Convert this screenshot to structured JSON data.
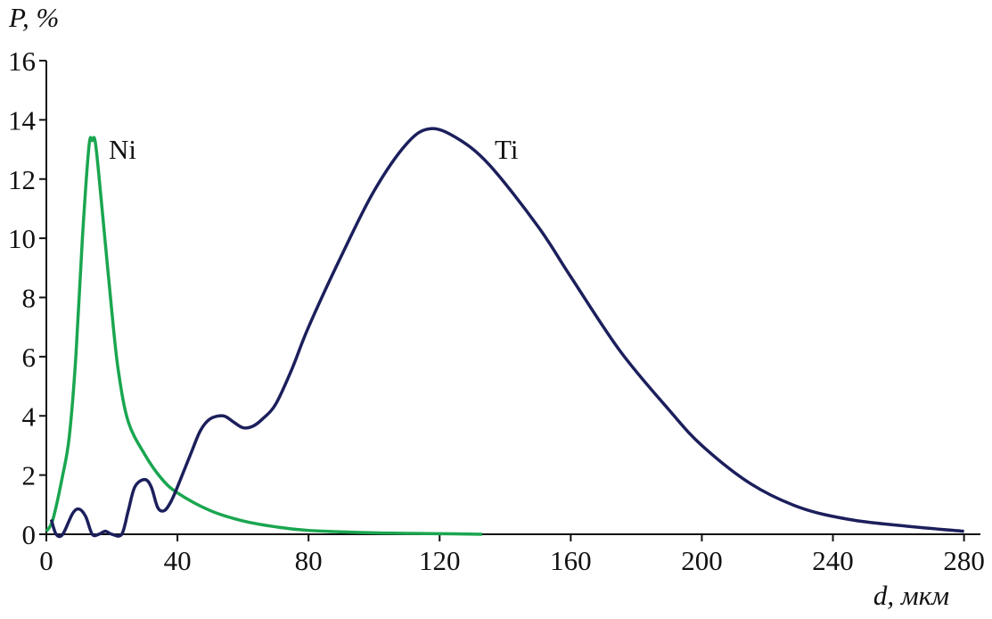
{
  "chart_data": {
    "type": "line",
    "ylabel": "P, %",
    "xlabel": "d, мкм",
    "xlim": [
      0,
      285
    ],
    "ylim": [
      0,
      16
    ],
    "xticks": [
      0,
      40,
      80,
      120,
      160,
      200,
      240,
      280
    ],
    "yticks": [
      0,
      2,
      4,
      6,
      8,
      10,
      12,
      14,
      16
    ],
    "grid": false,
    "series": [
      {
        "name": "Ni",
        "color": "#1aa650",
        "x": [
          0,
          2,
          5,
          7,
          9,
          11,
          13,
          14,
          15,
          17,
          20,
          22,
          25,
          30,
          35,
          40,
          50,
          60,
          70,
          80,
          100,
          120,
          133
        ],
        "values": [
          0.1,
          0.5,
          2,
          3.3,
          6,
          10,
          13.1,
          13.3,
          13.2,
          11,
          7.5,
          5.5,
          3.8,
          2.7,
          1.9,
          1.4,
          0.8,
          0.45,
          0.25,
          0.13,
          0.05,
          0.02,
          0
        ]
      },
      {
        "name": "Ti",
        "color": "#1c1f5c",
        "x": [
          1.5,
          3,
          5,
          8,
          10,
          12,
          14,
          16,
          18,
          20,
          23,
          25,
          27,
          30,
          32,
          34,
          36,
          38,
          40,
          44,
          47,
          50,
          54,
          57,
          60,
          63,
          66,
          70,
          75,
          80,
          90,
          100,
          110,
          117,
          125,
          135,
          150,
          160,
          175,
          190,
          200,
          215,
          230,
          245,
          260,
          280
        ],
        "values": [
          0.5,
          0,
          0,
          0.7,
          0.85,
          0.6,
          0,
          0,
          0.1,
          0,
          0,
          0.8,
          1.6,
          1.85,
          1.6,
          0.9,
          0.8,
          1.1,
          1.6,
          2.7,
          3.5,
          3.9,
          4.0,
          3.8,
          3.6,
          3.65,
          3.9,
          4.4,
          5.6,
          7.0,
          9.4,
          11.6,
          13.2,
          13.7,
          13.4,
          12.5,
          10.4,
          8.7,
          6.2,
          4.2,
          3.0,
          1.7,
          0.9,
          0.5,
          0.3,
          0.1
        ]
      }
    ]
  }
}
